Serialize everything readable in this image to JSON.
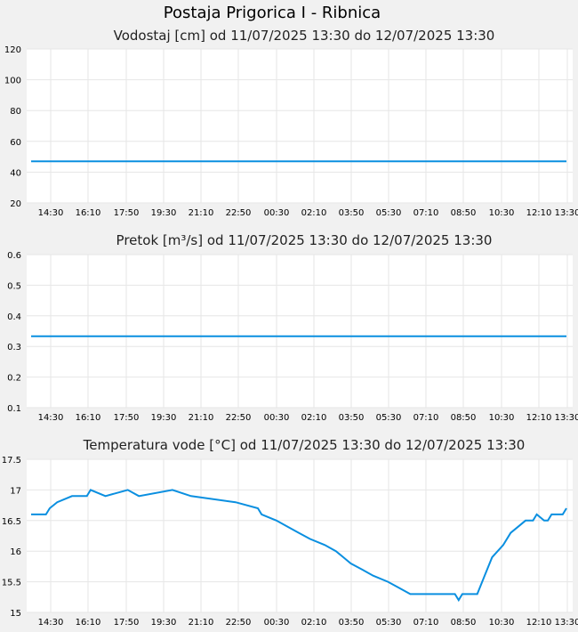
{
  "page": {
    "title": "Postaja Prigorica I - Ribnica"
  },
  "chart_data": [
    {
      "type": "line",
      "title": "Vodostaj [cm] od 11/07/2025 13:30 do 12/07/2025 13:30",
      "xlabel": "",
      "ylabel": "",
      "x_ticks": [
        "14:30",
        "16:10",
        "17:50",
        "19:30",
        "21:10",
        "22:50",
        "00:30",
        "02:10",
        "03:50",
        "05:30",
        "07:10",
        "08:50",
        "10:30",
        "12:10",
        "13:30"
      ],
      "y_ticks": [
        "20",
        "40",
        "60",
        "80",
        "100",
        "120"
      ],
      "ylim": [
        20,
        120
      ],
      "xlim": [
        "11/07/2025 13:30",
        "12/07/2025 13:30"
      ],
      "grid": true,
      "series": [
        {
          "color": "#0a8fe0",
          "x": [
            "11/07/2025 13:30",
            "12/07/2025 13:30"
          ],
          "values": [
            47,
            47
          ]
        }
      ]
    },
    {
      "type": "line",
      "title": "Pretok [m³/s] od 11/07/2025 13:30 do 12/07/2025 13:30",
      "xlabel": "",
      "ylabel": "",
      "x_ticks": [
        "14:30",
        "16:10",
        "17:50",
        "19:30",
        "21:10",
        "22:50",
        "00:30",
        "02:10",
        "03:50",
        "05:30",
        "07:10",
        "08:50",
        "10:30",
        "12:10",
        "13:30"
      ],
      "y_ticks": [
        "0.1",
        "0.2",
        "0.3",
        "0.4",
        "0.5",
        "0.6"
      ],
      "ylim": [
        0.1,
        0.6
      ],
      "xlim": [
        "11/07/2025 13:30",
        "12/07/2025 13:30"
      ],
      "grid": true,
      "series": [
        {
          "color": "#0a8fe0",
          "x": [
            "11/07/2025 13:30",
            "12/07/2025 13:30"
          ],
          "values": [
            0.333,
            0.333
          ]
        }
      ]
    },
    {
      "type": "line",
      "title": "Temperatura vode [°C] od 11/07/2025 13:30 do 12/07/2025 13:30",
      "xlabel": "",
      "ylabel": "",
      "x_ticks": [
        "14:30",
        "16:10",
        "17:50",
        "19:30",
        "21:10",
        "22:50",
        "00:30",
        "02:10",
        "03:50",
        "05:30",
        "07:10",
        "08:50",
        "10:30",
        "12:10",
        "13:30"
      ],
      "y_ticks": [
        "15",
        "15.5",
        "16",
        "16.5",
        "17",
        "17.5"
      ],
      "ylim": [
        15,
        17.5
      ],
      "xlim": [
        "11/07/2025 13:30",
        "12/07/2025 13:30"
      ],
      "grid": true,
      "series": [
        {
          "color": "#0a8fe0",
          "x": [
            "11/07/2025 13:30",
            "11/07/2025 14:10",
            "11/07/2025 14:20",
            "11/07/2025 14:40",
            "11/07/2025 15:20",
            "11/07/2025 16:00",
            "11/07/2025 16:10",
            "11/07/2025 16:50",
            "11/07/2025 17:50",
            "11/07/2025 18:20",
            "11/07/2025 19:50",
            "11/07/2025 20:40",
            "11/07/2025 22:40",
            "11/07/2025 23:40",
            "11/07/2025 23:50",
            "12/07/2025 00:30",
            "12/07/2025 01:00",
            "12/07/2025 01:30",
            "12/07/2025 02:00",
            "12/07/2025 02:40",
            "12/07/2025 03:10",
            "12/07/2025 03:30",
            "12/07/2025 03:50",
            "12/07/2025 04:20",
            "12/07/2025 04:50",
            "12/07/2025 05:30",
            "12/07/2025 06:00",
            "12/07/2025 06:30",
            "12/07/2025 07:00",
            "12/07/2025 07:50",
            "12/07/2025 08:30",
            "12/07/2025 08:40",
            "12/07/2025 08:50",
            "12/07/2025 09:30",
            "12/07/2025 09:50",
            "12/07/2025 10:10",
            "12/07/2025 10:40",
            "12/07/2025 11:00",
            "12/07/2025 11:20",
            "12/07/2025 11:40",
            "12/07/2025 12:00",
            "12/07/2025 12:10",
            "12/07/2025 12:30",
            "12/07/2025 12:40",
            "12/07/2025 12:50",
            "12/07/2025 13:00",
            "12/07/2025 13:20",
            "12/07/2025 13:30"
          ],
          "values": [
            16.6,
            16.6,
            16.7,
            16.8,
            16.9,
            16.9,
            17.0,
            16.9,
            17.0,
            16.9,
            17.0,
            16.9,
            16.8,
            16.7,
            16.6,
            16.5,
            16.4,
            16.3,
            16.2,
            16.1,
            16.0,
            15.9,
            15.8,
            15.7,
            15.6,
            15.5,
            15.4,
            15.3,
            15.3,
            15.3,
            15.3,
            15.2,
            15.3,
            15.3,
            15.6,
            15.9,
            16.1,
            16.3,
            16.4,
            16.5,
            16.5,
            16.6,
            16.5,
            16.5,
            16.6,
            16.6,
            16.6,
            16.7
          ]
        }
      ]
    }
  ]
}
